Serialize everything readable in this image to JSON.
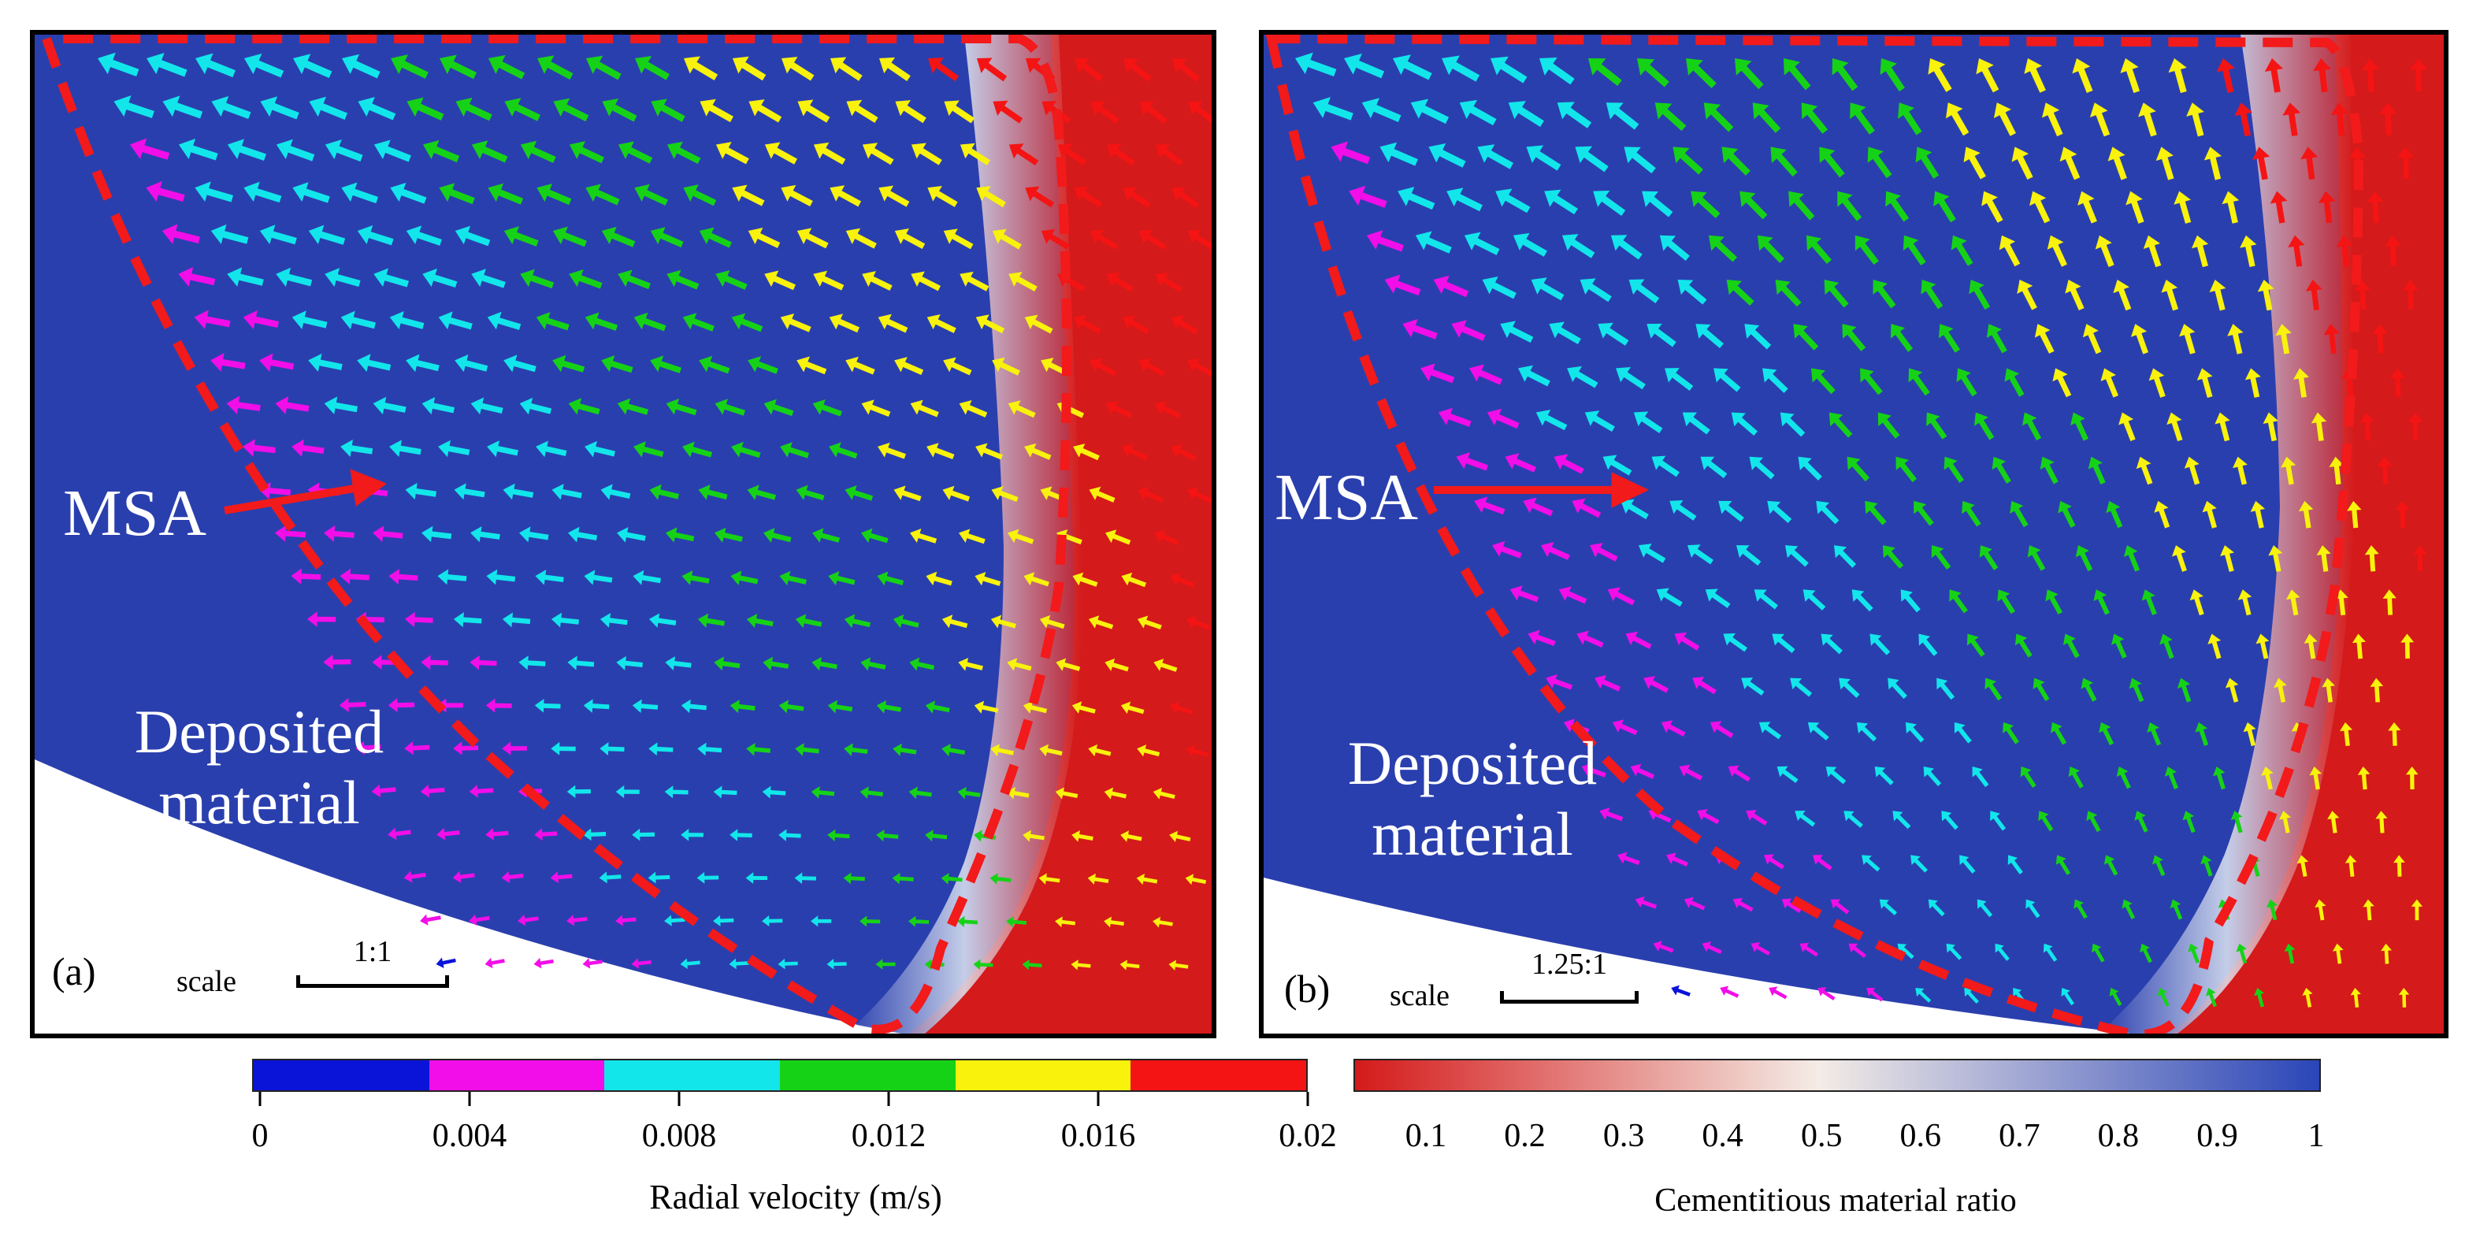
{
  "panels": [
    {
      "tag": "(a)",
      "msa": "MSA",
      "deposited": "Deposited\nmaterial",
      "scale_word": "scale",
      "scale_ratio": "1:1"
    },
    {
      "tag": "(b)",
      "msa": "MSA",
      "deposited": "Deposited\nmaterial",
      "scale_word": "scale",
      "scale_ratio": "1.25:1"
    }
  ],
  "velocity_bar": {
    "title": "Radial velocity (m/s)",
    "ticks": [
      "0",
      "0.004",
      "0.008",
      "0.012",
      "0.016",
      "0.02"
    ],
    "colors": [
      "#0a14d8",
      "#f20ee8",
      "#12e6ea",
      "#16d216",
      "#f8f20c",
      "#f41414"
    ]
  },
  "ratio_bar": {
    "title": "Cementitious material ratio",
    "ticks": [
      "0.1",
      "0.2",
      "0.3",
      "0.4",
      "0.5",
      "0.6",
      "0.7",
      "0.8",
      "0.9",
      "1"
    ],
    "color_low": "#d41a1a",
    "color_mid": "#f4ece6",
    "color_high": "#2a45b8"
  },
  "colors": {
    "deposit_blue": "#2a3fae",
    "paste_red": "#d41a1a",
    "dash_red": "#f21a1a"
  }
}
